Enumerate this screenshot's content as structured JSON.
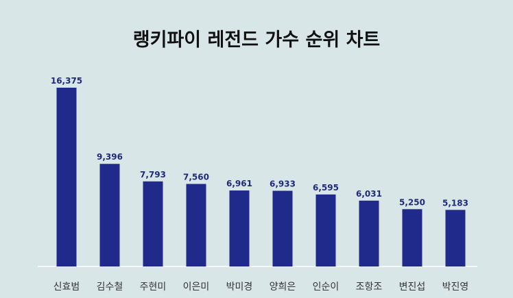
{
  "chart_data": {
    "type": "bar",
    "title": "랭키파이 레전드 가수 순위 차트",
    "categories": [
      "신효범",
      "김수철",
      "주현미",
      "이은미",
      "박미경",
      "양희은",
      "인순이",
      "조항조",
      "변진섭",
      "박진영"
    ],
    "values": [
      16375,
      9396,
      7793,
      7560,
      6961,
      6933,
      6595,
      6031,
      5250,
      5183
    ],
    "value_labels": [
      "16,375",
      "9,396",
      "7,793",
      "7,560",
      "6,961",
      "6,933",
      "6,595",
      "6,031",
      "5,250",
      "5,183"
    ],
    "ylim": [
      0,
      16375
    ],
    "grid": false,
    "legend": "none",
    "bar_color": "#1f2a8a",
    "background_color": "#d9e6e8"
  }
}
